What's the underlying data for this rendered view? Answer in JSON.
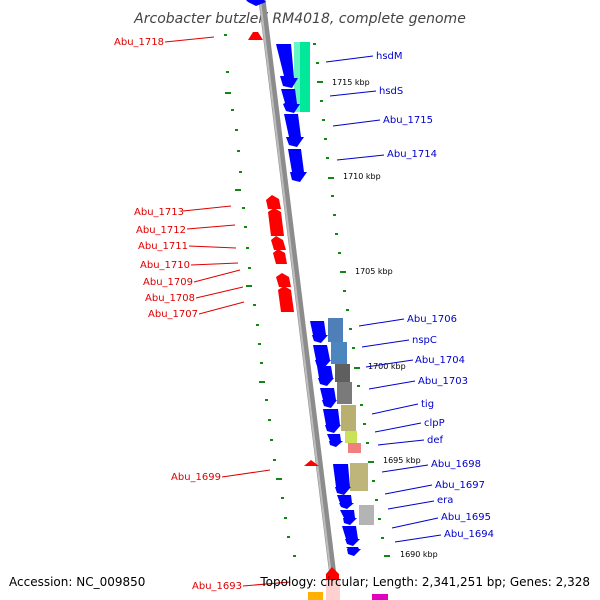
{
  "title": "Arcobacter butzleri RM4018, complete genome",
  "footer": {
    "accession": "Accession: NC_009850",
    "topology": "Topology: circular; Length: 2,341,251 bp; Genes: 2,328"
  },
  "colors": {
    "reverse_strand": "#ff0000",
    "forward_strand": "#0000ff",
    "label_reverse": "#e00000",
    "label_forward": "#0000cc",
    "backbone": "#8c8c8c",
    "ticks": "#118811"
  },
  "scale_labels": [
    "1715 kbp",
    "1710 kbp",
    "1705 kbp",
    "1700 kbp",
    "1695 kbp",
    "1690 kbp"
  ],
  "genes_reverse": [
    "Abu_1718",
    "Abu_1713",
    "Abu_1712",
    "Abu_1711",
    "Abu_1710",
    "Abu_1709",
    "Abu_1708",
    "Abu_1707",
    "Abu_1699",
    "Abu_1693"
  ],
  "genes_forward": [
    "hsdM",
    "hsdS",
    "Abu_1715",
    "Abu_1714",
    "Abu_1706",
    "nspC",
    "Abu_1704",
    "Abu_1703",
    "tig",
    "clpP",
    "def",
    "Abu_1698",
    "Abu_1697",
    "era",
    "Abu_1695",
    "Abu_1694"
  ],
  "feature_colors": {
    "hsdM_hsdS": "#00e89a",
    "Abu_1706": "#4f7fb8",
    "nspC": "#4d85bf",
    "Abu_1704": "#5f5f5f",
    "Abu_1703": "#7a7a7a",
    "tig": "#b8b070",
    "clpP": "#c9e25a",
    "def": "#f08080",
    "Abu_1698": "#bdb579",
    "era": "#b4b4b4"
  }
}
